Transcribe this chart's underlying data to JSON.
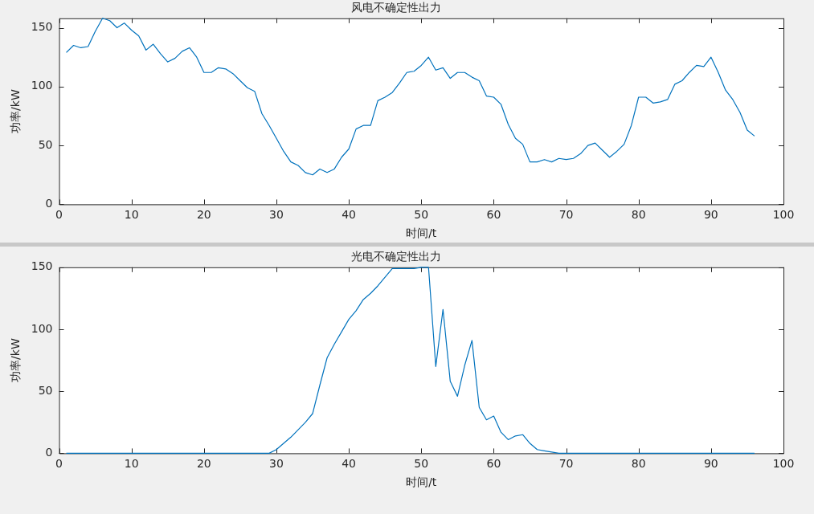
{
  "chart_data": [
    {
      "type": "line",
      "title": "风电不确定性出力",
      "xlabel": "时间/t",
      "ylabel": "功率/kW",
      "xlim": [
        0,
        100
      ],
      "xticks": [
        0,
        10,
        20,
        30,
        40,
        50,
        60,
        70,
        80,
        90,
        100
      ],
      "ylim": [
        0,
        158
      ],
      "yticks": [
        0,
        50,
        100,
        150
      ],
      "grid": false,
      "legend": false,
      "marker": "none",
      "line_style": "solid",
      "x": [
        1,
        2,
        3,
        4,
        5,
        6,
        7,
        8,
        9,
        10,
        11,
        12,
        13,
        14,
        15,
        16,
        17,
        18,
        19,
        20,
        21,
        22,
        23,
        24,
        25,
        26,
        27,
        28,
        29,
        30,
        31,
        32,
        33,
        34,
        35,
        36,
        37,
        38,
        39,
        40,
        41,
        42,
        43,
        44,
        45,
        46,
        47,
        48,
        49,
        50,
        51,
        52,
        53,
        54,
        55,
        56,
        57,
        58,
        59,
        60,
        61,
        62,
        63,
        64,
        65,
        66,
        67,
        68,
        69,
        70,
        71,
        72,
        73,
        74,
        75,
        76,
        77,
        78,
        79,
        80,
        81,
        82,
        83,
        84,
        85,
        86,
        87,
        88,
        89,
        90,
        91,
        92,
        93,
        94,
        95,
        96
      ],
      "series": [
        {
          "color": "#0072bd",
          "values": [
            129,
            135,
            133,
            134,
            147,
            158,
            156,
            150,
            154,
            148,
            143,
            131,
            136,
            128,
            121,
            124,
            130,
            133,
            125,
            112,
            112,
            116,
            115,
            111,
            105,
            99,
            96,
            77,
            67,
            56,
            45,
            36,
            33,
            27,
            25,
            30,
            27,
            30,
            40,
            47,
            64,
            67,
            67,
            88,
            91,
            95,
            103,
            112,
            113,
            118,
            125,
            114,
            116,
            107,
            112,
            112,
            108,
            105,
            92,
            91,
            85,
            68,
            56,
            51,
            36,
            36,
            38,
            36,
            39,
            38,
            39,
            43,
            50,
            52,
            46,
            40,
            45,
            51,
            67,
            91,
            91,
            86,
            87,
            89,
            102,
            105,
            112,
            118,
            117,
            125,
            112,
            97,
            89,
            78,
            63,
            58
          ]
        }
      ]
    },
    {
      "type": "line",
      "title": "光电不确定性出力",
      "xlabel": "时间/t",
      "ylabel": "功率/kW",
      "xlim": [
        0,
        100
      ],
      "xticks": [
        0,
        10,
        20,
        30,
        40,
        50,
        60,
        70,
        80,
        90,
        100
      ],
      "ylim": [
        0,
        150
      ],
      "yticks": [
        0,
        50,
        100,
        150
      ],
      "grid": false,
      "legend": false,
      "marker": "none",
      "line_style": "solid",
      "x": [
        1,
        2,
        3,
        4,
        5,
        6,
        7,
        8,
        9,
        10,
        11,
        12,
        13,
        14,
        15,
        16,
        17,
        18,
        19,
        20,
        21,
        22,
        23,
        24,
        25,
        26,
        27,
        28,
        29,
        30,
        31,
        32,
        33,
        34,
        35,
        36,
        37,
        38,
        39,
        40,
        41,
        42,
        43,
        44,
        45,
        46,
        47,
        48,
        49,
        50,
        51,
        52,
        53,
        54,
        55,
        56,
        57,
        58,
        59,
        60,
        61,
        62,
        63,
        64,
        65,
        66,
        67,
        68,
        69,
        70,
        71,
        72,
        73,
        74,
        75,
        76,
        77,
        78,
        79,
        80,
        81,
        82,
        83,
        84,
        85,
        86,
        87,
        88,
        89,
        90,
        91,
        92,
        93,
        94,
        95,
        96
      ],
      "series": [
        {
          "color": "#0072bd",
          "values": [
            0,
            0,
            0,
            0,
            0,
            0,
            0,
            0,
            0,
            0,
            0,
            0,
            0,
            0,
            0,
            0,
            0,
            0,
            0,
            0,
            0,
            0,
            0,
            0,
            0,
            0,
            0,
            0,
            0,
            3,
            8,
            13,
            19,
            25,
            32,
            55,
            77,
            88,
            98,
            108,
            115,
            124,
            129,
            135,
            142,
            149,
            149,
            149,
            149,
            150,
            150,
            70,
            116,
            58,
            46,
            71,
            91,
            37,
            27,
            30,
            17,
            11,
            14,
            15,
            8,
            3,
            2,
            1,
            0,
            0,
            0,
            0,
            0,
            0,
            0,
            0,
            0,
            0,
            0,
            0,
            0,
            0,
            0,
            0,
            0,
            0,
            0,
            0,
            0,
            0,
            0,
            0,
            0,
            0,
            0,
            0
          ]
        }
      ]
    }
  ]
}
